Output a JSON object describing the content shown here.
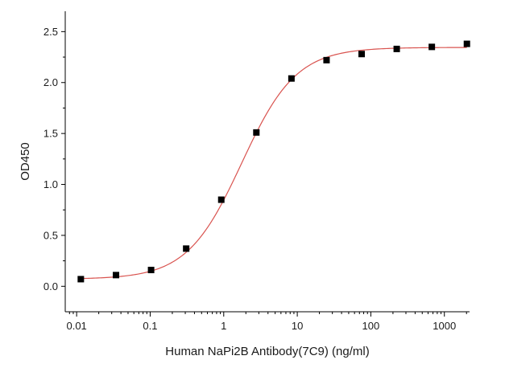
{
  "chart_data": {
    "type": "scatter",
    "title": "",
    "xlabel": "Human NaPi2B Antibody(7C9) (ng/ml)",
    "ylabel": "OD450",
    "xscale": "log",
    "xlim": [
      0.007,
      2200
    ],
    "ylim": [
      -0.25,
      2.7
    ],
    "xticks": [
      0.01,
      0.1,
      1,
      10,
      100,
      1000
    ],
    "xtick_labels": [
      "0.01",
      "0.1",
      "1",
      "10",
      "100",
      "1000"
    ],
    "yticks": [
      0.0,
      0.5,
      1.0,
      1.5,
      2.0,
      2.5
    ],
    "ytick_labels": [
      "0.0",
      "0.5",
      "1.0",
      "1.5",
      "2.0",
      "2.5"
    ],
    "grid": false,
    "legend": "none",
    "series": [
      {
        "marker": "square",
        "color": "#000000",
        "x": [
          0.0114,
          0.0343,
          0.1029,
          0.3086,
          0.9259,
          2.778,
          8.333,
          25,
          75,
          225,
          675,
          2025
        ],
        "y": [
          0.07,
          0.11,
          0.16,
          0.37,
          0.85,
          1.51,
          2.04,
          2.22,
          2.28,
          2.33,
          2.35,
          2.38
        ]
      }
    ],
    "fit": {
      "type": "4PL",
      "color": "#d9534f",
      "bottom": 0.07,
      "top": 2.345,
      "ec50": 1.75,
      "hill": 1.17
    }
  }
}
